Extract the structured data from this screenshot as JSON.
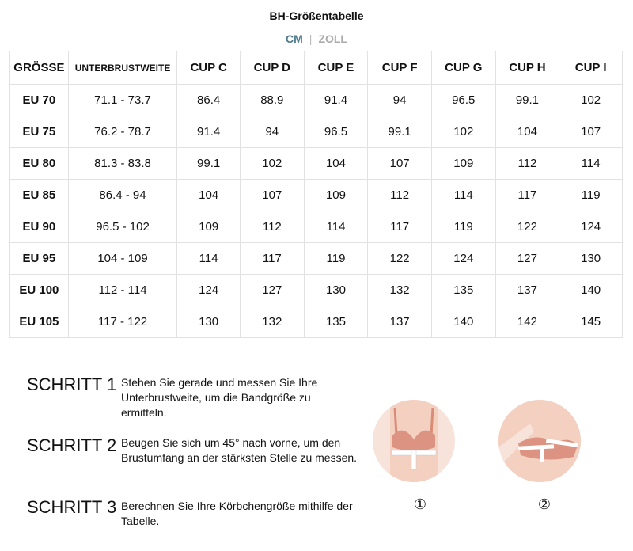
{
  "title": "BH-Größentabelle",
  "units": {
    "active": "CM",
    "separator": "|",
    "inactive": "ZOLL",
    "active_color": "#4d7a8c"
  },
  "table": {
    "headers": [
      "GRÖSSE",
      "UNTERBRUSTWEITE",
      "CUP C",
      "CUP D",
      "CUP E",
      "CUP F",
      "CUP G",
      "CUP H",
      "CUP I"
    ],
    "rows": [
      [
        "EU 70",
        "71.1 - 73.7",
        "86.4",
        "88.9",
        "91.4",
        "94",
        "96.5",
        "99.1",
        "102"
      ],
      [
        "EU 75",
        "76.2 - 78.7",
        "91.4",
        "94",
        "96.5",
        "99.1",
        "102",
        "104",
        "107"
      ],
      [
        "EU 80",
        "81.3 - 83.8",
        "99.1",
        "102",
        "104",
        "107",
        "109",
        "112",
        "114"
      ],
      [
        "EU 85",
        "86.4 - 94",
        "104",
        "107",
        "109",
        "112",
        "114",
        "117",
        "119"
      ],
      [
        "EU 90",
        "96.5 - 102",
        "109",
        "112",
        "114",
        "117",
        "119",
        "122",
        "124"
      ],
      [
        "EU 95",
        "104 - 109",
        "114",
        "117",
        "119",
        "122",
        "124",
        "127",
        "130"
      ],
      [
        "EU 100",
        "112 - 114",
        "124",
        "127",
        "130",
        "132",
        "135",
        "137",
        "140"
      ],
      [
        "EU 105",
        "117 - 122",
        "130",
        "132",
        "135",
        "137",
        "140",
        "142",
        "145"
      ]
    ]
  },
  "steps": [
    {
      "label": "SCHRITT 1",
      "text": "Stehen Sie gerade und messen Sie Ihre Unterbrustweite, um die Bandgröße zu ermitteln."
    },
    {
      "label": "SCHRITT 2",
      "text": "Beugen Sie sich um 45° nach vorne, um den Brustumfang an der stärksten Stelle zu messen."
    },
    {
      "label": "SCHRITT 3",
      "text": "Berechnen Sie Ihre Körbchengröße mithilfe der Tabelle."
    }
  ],
  "illustrations": [
    {
      "number": "①"
    },
    {
      "number": "②"
    }
  ]
}
